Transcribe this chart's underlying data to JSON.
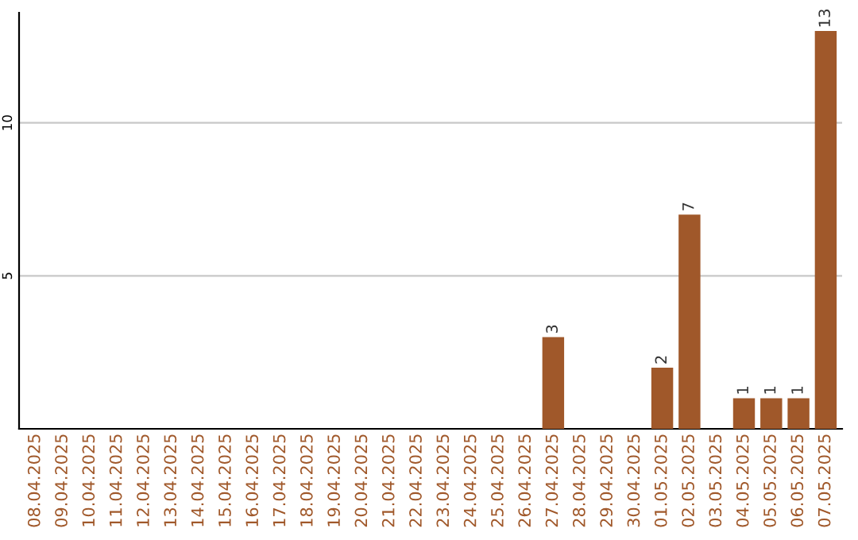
{
  "chart_data": {
    "type": "bar",
    "categories": [
      "08.04.2025",
      "09.04.2025",
      "10.04.2025",
      "11.04.2025",
      "12.04.2025",
      "13.04.2025",
      "14.04.2025",
      "15.04.2025",
      "16.04.2025",
      "17.04.2025",
      "18.04.2025",
      "19.04.2025",
      "20.04.2025",
      "21.04.2025",
      "22.04.2025",
      "23.04.2025",
      "24.04.2025",
      "25.04.2025",
      "26.04.2025",
      "27.04.2025",
      "28.04.2025",
      "29.04.2025",
      "30.04.2025",
      "01.05.2025",
      "02.05.2025",
      "03.05.2025",
      "04.05.2025",
      "05.05.2025",
      "06.05.2025",
      "07.05.2025"
    ],
    "values": [
      0,
      0,
      0,
      0,
      0,
      0,
      0,
      0,
      0,
      0,
      0,
      0,
      0,
      0,
      0,
      0,
      0,
      0,
      0,
      3,
      0,
      0,
      0,
      2,
      7,
      0,
      1,
      1,
      1,
      13
    ],
    "value_labels": [
      null,
      null,
      null,
      null,
      null,
      null,
      null,
      null,
      null,
      null,
      null,
      null,
      null,
      null,
      null,
      null,
      null,
      null,
      null,
      "3",
      null,
      null,
      null,
      "2",
      "7",
      null,
      "1",
      "1",
      "1",
      "13"
    ],
    "color": "#a0582a",
    "ylim": [
      0,
      13.6
    ],
    "yticks": [
      5,
      10
    ],
    "grid": "y"
  }
}
